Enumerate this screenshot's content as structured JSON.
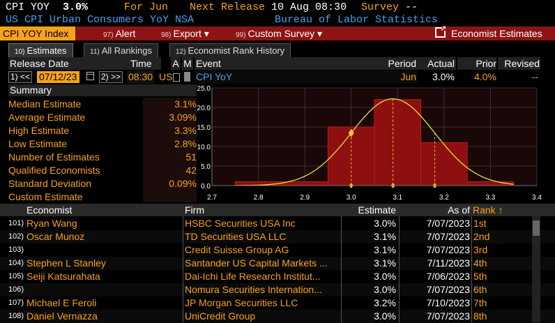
{
  "header": {
    "ticker": "CPI YOY",
    "value": "3.0%",
    "for_label": "For",
    "for_value": "Jun",
    "next_release_label": "Next Release",
    "next_release_value": "10 Aug 08:30",
    "survey_label": "Survey",
    "survey_value": "--",
    "description": "US CPI Urban Consumers YoY NSA",
    "source": "Bureau of Labor Statistics"
  },
  "toolbar": {
    "current": "CPI YOY Index",
    "items": [
      {
        "num": "97)",
        "label": "Alert"
      },
      {
        "num": "98)",
        "label": "Export ▾"
      },
      {
        "num": "99)",
        "label": "Custom Survey ▾"
      }
    ],
    "economist_estimates": "Economist Estimates"
  },
  "tabs": [
    {
      "num": "10)",
      "label": "Estimates"
    },
    {
      "num": "11)",
      "label": "All Rankings"
    },
    {
      "num": "12)",
      "label": "Economist Rank History"
    }
  ],
  "grid": {
    "headers": {
      "release_date": "Release Date",
      "time": "Time",
      "a": "A",
      "m": "M",
      "event": "Event",
      "period": "Period",
      "actual": "Actual",
      "prior": "Prior",
      "revised": "Revised"
    },
    "row": {
      "nav_prev": "1) <<",
      "date": "07/12/23",
      "nav_next": "2) >>",
      "time": "08:30",
      "country": "US",
      "event": "CPI YoY",
      "period": "Jun",
      "actual": "3.0%",
      "prior": "4.0%",
      "revised": "--"
    }
  },
  "summary": {
    "title": "Summary",
    "rows": [
      {
        "label": "Median Estimate",
        "value": "3.1%"
      },
      {
        "label": "Average Estimate",
        "value": "3.09%"
      },
      {
        "label": "High Estimate",
        "value": "3.3%"
      },
      {
        "label": "Low Estimate",
        "value": "2.8%"
      },
      {
        "label": "Number of Estimates",
        "value": "51"
      },
      {
        "label": "Qualified Economists",
        "value": "42"
      },
      {
        "label": "Standard Deviation",
        "value": "0.09%"
      },
      {
        "label": "Custom Estimate",
        "value": ""
      }
    ]
  },
  "chart_data": {
    "type": "bar",
    "x_ticks": [
      "2.7",
      "2.8",
      "2.9",
      "3.0",
      "3.1",
      "3.2",
      "3.3",
      "3.4"
    ],
    "y_ticks": [
      "0.0",
      "5.0",
      "10.0",
      "15.0",
      "20.0",
      "25.0"
    ],
    "xlim": [
      2.7,
      3.4
    ],
    "ylim": [
      0,
      25
    ],
    "bins": [
      {
        "x0": 2.75,
        "x1": 2.85,
        "value": 1
      },
      {
        "x0": 2.85,
        "x1": 2.95,
        "value": 1
      },
      {
        "x0": 2.95,
        "x1": 3.05,
        "value": 15
      },
      {
        "x0": 3.05,
        "x1": 3.15,
        "value": 22
      },
      {
        "x0": 3.15,
        "x1": 3.25,
        "value": 11
      },
      {
        "x0": 3.25,
        "x1": 3.35,
        "value": 1
      }
    ],
    "normal_curve": {
      "mean": 3.09,
      "std": 0.09,
      "peak": 22.2
    },
    "markers": [
      {
        "x": 3.0,
        "type": "actual"
      },
      {
        "x": 3.09,
        "type": "average"
      },
      {
        "x": 3.18,
        "type": "plus-one-sd"
      }
    ],
    "colors": {
      "bar": "#8e0f0f",
      "bar_edge": "#c21a1a",
      "curve": "#e8e23a",
      "marker": "#f7c531",
      "grid": "#333333",
      "plot_bg": "#1a0707"
    },
    "grid": true
  },
  "table": {
    "headers": {
      "economist": "Economist",
      "firm": "Firm",
      "estimate": "Estimate",
      "as_of": "As of",
      "rank": "Rank ↑"
    },
    "rows": [
      {
        "num": "101)",
        "economist": "Ryan Wang",
        "firm": "HSBC Securities USA Inc",
        "estimate": "3.0%",
        "as_of": "7/07/2023",
        "rank": "1st"
      },
      {
        "num": "102)",
        "economist": "Oscar Munoz",
        "firm": "TD Securities USA LLC",
        "estimate": "3.1%",
        "as_of": "7/07/2023",
        "rank": "2nd"
      },
      {
        "num": "103)",
        "economist": "",
        "firm": "Credit Suisse Group AG",
        "estimate": "3.1%",
        "as_of": "7/07/2023",
        "rank": "3rd"
      },
      {
        "num": "104)",
        "economist": "Stephen L Stanley",
        "firm": "Santander US Capital Markets ...",
        "estimate": "3.1%",
        "as_of": "7/11/2023",
        "rank": "4th"
      },
      {
        "num": "105)",
        "economist": "Seiji Katsurahata",
        "firm": "Dai-Ichi Life Research Institut...",
        "estimate": "3.0%",
        "as_of": "7/06/2023",
        "rank": "5th"
      },
      {
        "num": "106)",
        "economist": "",
        "firm": "Nomura Securities Internation...",
        "estimate": "3.0%",
        "as_of": "7/07/2023",
        "rank": "6th"
      },
      {
        "num": "107)",
        "economist": "Michael E Feroli",
        "firm": "JP Morgan Securities LLC",
        "estimate": "3.2%",
        "as_of": "7/10/2023",
        "rank": "7th"
      },
      {
        "num": "108)",
        "economist": "Daniel Vernazza",
        "firm": "UniCredit Group",
        "estimate": "3.0%",
        "as_of": "7/07/2023",
        "rank": "8th"
      }
    ]
  }
}
